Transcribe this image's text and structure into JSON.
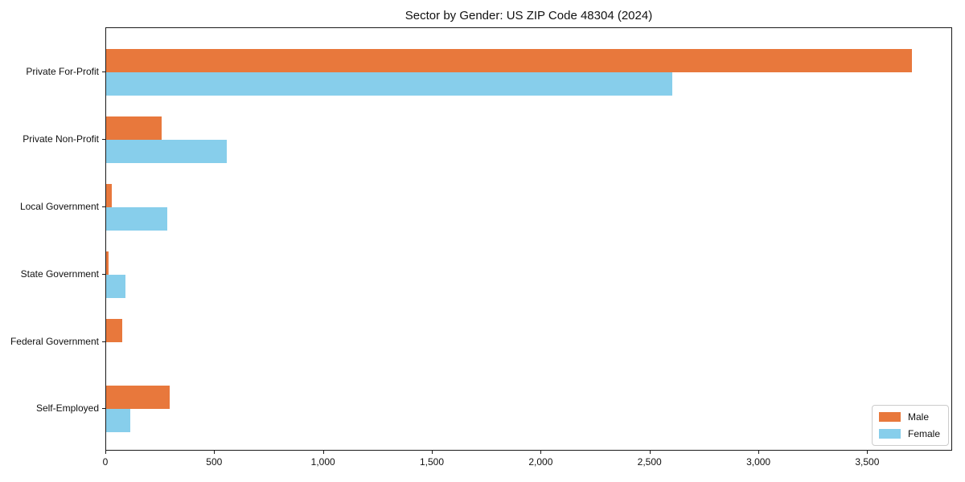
{
  "title": "Sector by Gender: US ZIP Code 48304 (2024)",
  "chart_data": {
    "type": "bar",
    "orientation": "horizontal",
    "title": "Sector by Gender: US ZIP Code 48304 (2024)",
    "categories": [
      "Private For-Profit",
      "Private Non-Profit",
      "Local Government",
      "State Government",
      "Federal Government",
      "Self-Employed"
    ],
    "series": [
      {
        "name": "Male",
        "color": "#e8783c",
        "values": [
          3700,
          255,
          25,
          10,
          75,
          290
        ]
      },
      {
        "name": "Female",
        "color": "#87ceeb",
        "values": [
          2600,
          555,
          280,
          90,
          0,
          110
        ]
      }
    ],
    "xlabel": "",
    "ylabel": "",
    "xlim": [
      0,
      3890
    ],
    "xticks": [
      0,
      500,
      1000,
      1500,
      2000,
      2500,
      3000,
      3500
    ],
    "xtick_labels": [
      "0",
      "500",
      "1,000",
      "1,500",
      "2,000",
      "2,500",
      "3,000",
      "3,500"
    ],
    "legend": {
      "position": "lower right",
      "entries": [
        "Male",
        "Female"
      ]
    },
    "grid": false,
    "background_color": "#ffffff",
    "axis_color": "#1a1a1a"
  }
}
